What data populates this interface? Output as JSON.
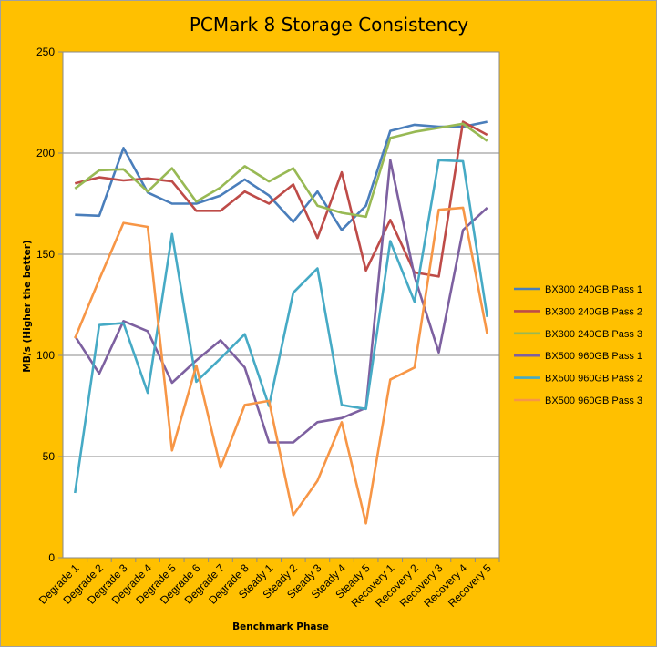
{
  "chart_data": {
    "type": "line",
    "title": "PCMark 8 Storage Consistency",
    "xlabel": "Benchmark Phase",
    "ylabel": "MB/s (Higher the better)",
    "ylim": [
      0,
      250
    ],
    "yticks": [
      0,
      50,
      100,
      150,
      200,
      250
    ],
    "grid": true,
    "legend_position": "right",
    "categories": [
      "Degrade 1",
      "Degrade 2",
      "Degrade 3",
      "Degrade 4",
      "Degrade 5",
      "Degrade 6",
      "Degrade 7",
      "Degrade 8",
      "Steady 1",
      "Steady 2",
      "Steady 3",
      "Steady 4",
      "Steady 5",
      "Recovery 1",
      "Recovery 2",
      "Recovery 3",
      "Recovery 4",
      "Recovery 5"
    ],
    "series": [
      {
        "name": "BX300 240GB Pass 1",
        "color": "#4a7ebb",
        "values": [
          169.5,
          169,
          202.5,
          180.5,
          175,
          175,
          179,
          187,
          179,
          166,
          181,
          162,
          174,
          211,
          214,
          213,
          213,
          215.5
        ]
      },
      {
        "name": "BX300 240GB Pass 2",
        "color": "#be4b48",
        "values": [
          185,
          188,
          186.5,
          187.5,
          186,
          171.5,
          171.5,
          181,
          175,
          184.5,
          158,
          190.5,
          142,
          167,
          141,
          139,
          215.5,
          209
        ]
      },
      {
        "name": "BX300 240GB Pass 3",
        "color": "#98b954",
        "values": [
          182.5,
          191.5,
          192,
          181,
          192.5,
          176,
          183,
          193.5,
          186,
          192.5,
          174,
          170.5,
          168.5,
          207.5,
          210.5,
          212.5,
          214.5,
          206
        ]
      },
      {
        "name": "BX500 960GB Pass 1",
        "color": "#7d60a0",
        "values": [
          109.5,
          91,
          117,
          112,
          86.5,
          97.5,
          107.5,
          94,
          57,
          57,
          67,
          69,
          74,
          196.5,
          139,
          101.5,
          162,
          173
        ]
      },
      {
        "name": "BX500 960GB Pass 2",
        "color": "#46aac5",
        "values": [
          32,
          115,
          116,
          81.5,
          160,
          87,
          98.5,
          110.5,
          75,
          131,
          143,
          75.5,
          73.5,
          156.5,
          126.5,
          196.5,
          196,
          119
        ]
      },
      {
        "name": "BX500 960GB Pass 3",
        "color": "#f79646",
        "values": [
          108.5,
          137.5,
          165.5,
          163.5,
          53,
          95,
          44.5,
          75.5,
          77.5,
          21,
          38,
          67,
          17,
          88,
          94,
          172,
          173,
          110.5
        ]
      }
    ]
  }
}
